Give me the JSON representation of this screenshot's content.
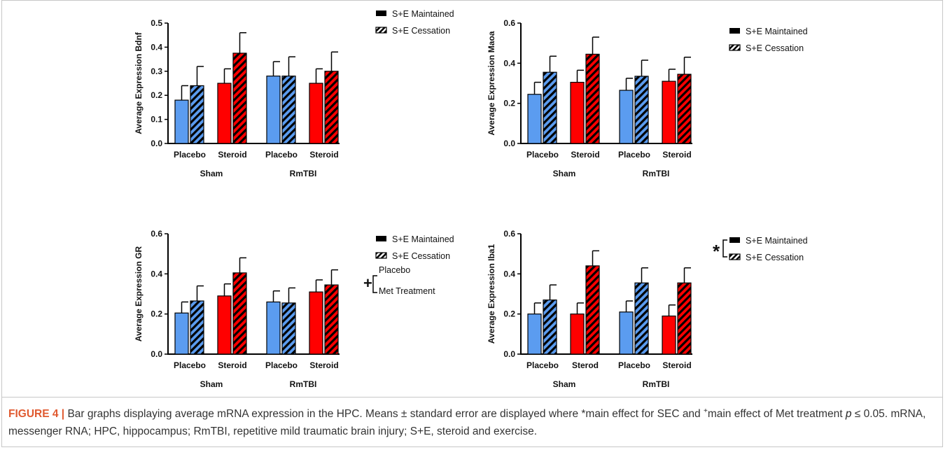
{
  "colors": {
    "placebo": "#5b9cf0",
    "steroid": "#ff0000",
    "text": "#111111",
    "caption_lead": "#e05a30"
  },
  "chart_data": [
    {
      "type": "bar",
      "ylabel": "Average Expression Bdnf",
      "ylim": [
        0,
        0.5
      ],
      "yticks": [
        "0.0",
        "0.1",
        "0.2",
        "0.3",
        "0.4",
        "0.5"
      ],
      "groups": [
        "Sham",
        "RmTBI"
      ],
      "categories": [
        "Placebo",
        "Steroid",
        "Placebo",
        "Steroid"
      ],
      "legend": [
        "S+E Maintained",
        "S+E Cessation"
      ],
      "series": [
        {
          "name": "S+E Maintained",
          "values": [
            0.18,
            0.25,
            0.28,
            0.25
          ],
          "errors": [
            0.06,
            0.06,
            0.06,
            0.06
          ]
        },
        {
          "name": "S+E Cessation",
          "values": [
            0.24,
            0.375,
            0.28,
            0.3
          ],
          "errors": [
            0.08,
            0.085,
            0.08,
            0.08
          ]
        }
      ],
      "annotation": null
    },
    {
      "type": "bar",
      "ylabel": "Average Expression Maoa",
      "ylim": [
        0,
        0.6
      ],
      "yticks": [
        "0.0",
        "0.2",
        "0.4",
        "0.6"
      ],
      "groups": [
        "Sham",
        "RmTBI"
      ],
      "categories": [
        "Placebo",
        "Steroid",
        "Placebo",
        "Steroid"
      ],
      "legend": [
        "S+E Maintained",
        "S+E Cessation"
      ],
      "series": [
        {
          "name": "S+E Maintained",
          "values": [
            0.245,
            0.305,
            0.265,
            0.31
          ],
          "errors": [
            0.06,
            0.06,
            0.06,
            0.06
          ]
        },
        {
          "name": "S+E Cessation",
          "values": [
            0.355,
            0.445,
            0.335,
            0.345
          ],
          "errors": [
            0.08,
            0.085,
            0.08,
            0.085
          ]
        }
      ],
      "annotation": null
    },
    {
      "type": "bar",
      "ylabel": "Average Expression GR",
      "ylim": [
        0,
        0.6
      ],
      "yticks": [
        "0.0",
        "0.2",
        "0.4",
        "0.6"
      ],
      "groups": [
        "Sham",
        "RmTBI"
      ],
      "categories": [
        "Placebo",
        "Steroid",
        "Placebo",
        "Steroid"
      ],
      "legend": [
        "S+E Maintained",
        "S+E Cessation"
      ],
      "series": [
        {
          "name": "S+E Maintained",
          "values": [
            0.205,
            0.29,
            0.26,
            0.31
          ],
          "errors": [
            0.055,
            0.06,
            0.055,
            0.06
          ]
        },
        {
          "name": "S+E Cessation",
          "values": [
            0.265,
            0.405,
            0.255,
            0.345
          ],
          "errors": [
            0.075,
            0.075,
            0.075,
            0.075
          ]
        }
      ],
      "annotation": {
        "symbol": "+",
        "labels": [
          "Placebo",
          "Met Treatment"
        ]
      }
    },
    {
      "type": "bar",
      "ylabel": "Average Expression Iba1",
      "ylim": [
        0,
        0.6
      ],
      "yticks": [
        "0.0",
        "0.2",
        "0.4",
        "0.6"
      ],
      "groups": [
        "Sham",
        "RmTBI"
      ],
      "categories": [
        "Placebo",
        "Sterod",
        "Placebo",
        "Steroid"
      ],
      "legend": [
        "S+E Maintained",
        "S+E Cessation"
      ],
      "series": [
        {
          "name": "S+E Maintained",
          "values": [
            0.2,
            0.2,
            0.21,
            0.19
          ],
          "errors": [
            0.055,
            0.055,
            0.055,
            0.055
          ]
        },
        {
          "name": "S+E Cessation",
          "values": [
            0.27,
            0.44,
            0.355,
            0.355
          ],
          "errors": [
            0.075,
            0.075,
            0.075,
            0.075
          ]
        }
      ],
      "annotation": {
        "symbol": "*",
        "bracket_on_legend": true
      }
    }
  ],
  "caption": {
    "lead": "FIGURE 4 |",
    "text_1": " Bar graphs displaying average mRNA expression in the HPC. Means ± standard error are displayed where *main effect for SEC and ",
    "plus": "+",
    "text_2": "main effect of Met treatment ",
    "p": "p",
    "text_3": " ≤ 0.05. mRNA, messenger RNA; HPC, hippocampus; RmTBI, repetitive mild traumatic brain injury; S+E, steroid and exercise."
  }
}
